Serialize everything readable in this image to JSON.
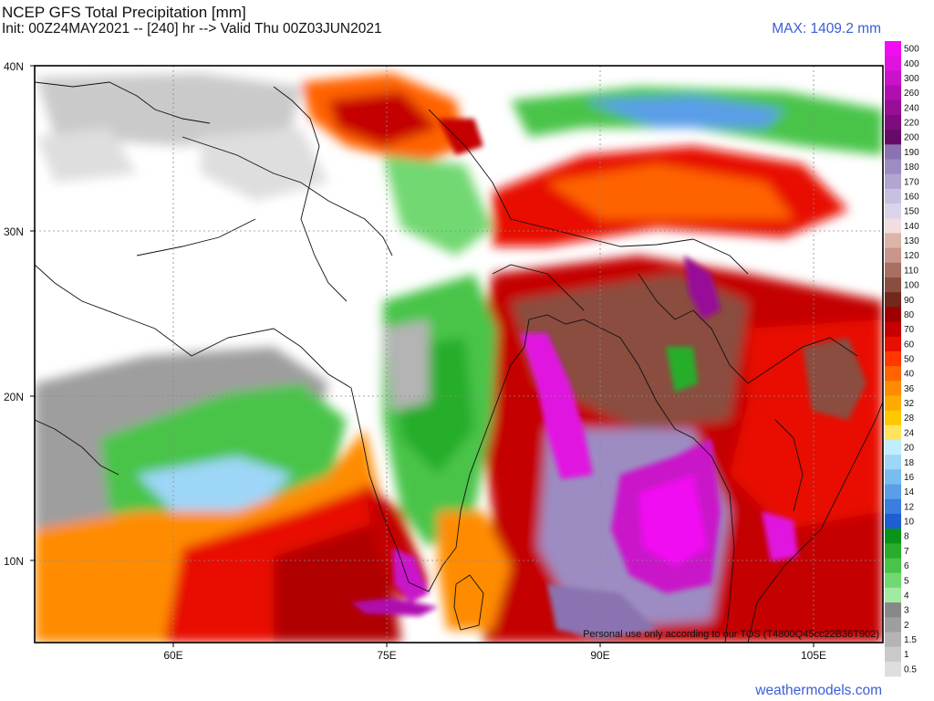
{
  "header": {
    "title": "NCEP GFS Total Precipitation [mm]",
    "init_line": "Init: 00Z24MAY2021 -- [240] hr --> Valid Thu 00Z03JUN2021",
    "max_label": "MAX: 1409.2 mm"
  },
  "map": {
    "lat_labels": [
      "40N",
      "30N",
      "20N",
      "10N"
    ],
    "lon_labels": [
      "60E",
      "75E",
      "90E",
      "105E"
    ],
    "credit": "Personal use only according to our TOS (T4800Q45cc22B36T902)"
  },
  "colorbar": {
    "labels": [
      "500",
      "400",
      "300",
      "260",
      "240",
      "220",
      "200",
      "190",
      "180",
      "170",
      "160",
      "150",
      "140",
      "130",
      "120",
      "110",
      "100",
      "90",
      "80",
      "70",
      "60",
      "50",
      "40",
      "36",
      "32",
      "28",
      "24",
      "20",
      "18",
      "16",
      "14",
      "12",
      "10",
      "8",
      "7",
      "6",
      "5",
      "4",
      "3",
      "2",
      "1.5",
      "1",
      "0.5"
    ],
    "colors": [
      "#f10cf1",
      "#e012e0",
      "#c912c9",
      "#b00fb0",
      "#970e97",
      "#7e0c7e",
      "#650a65",
      "#8a73b0",
      "#9d8cc2",
      "#b2a6d0",
      "#c8c0e0",
      "#dcd4ea",
      "#f2dede",
      "#dcb4a8",
      "#c8968c",
      "#a87060",
      "#8a4e40",
      "#72281c",
      "#9e0000",
      "#c40000",
      "#e80e00",
      "#ff3800",
      "#ff6400",
      "#ff8c00",
      "#ffaa00",
      "#ffc800",
      "#ffe45a",
      "#c0eefa",
      "#9ed6f8",
      "#78bcf0",
      "#5a9ee8",
      "#3a7ede",
      "#1e5ed0",
      "#089418",
      "#28ad2c",
      "#48c448",
      "#72d872",
      "#a2eaa2",
      "#888888",
      "#9e9e9e",
      "#b4b4b4",
      "#cacaca",
      "#dedede"
    ]
  },
  "footer": {
    "site": "weathermodels.com"
  }
}
